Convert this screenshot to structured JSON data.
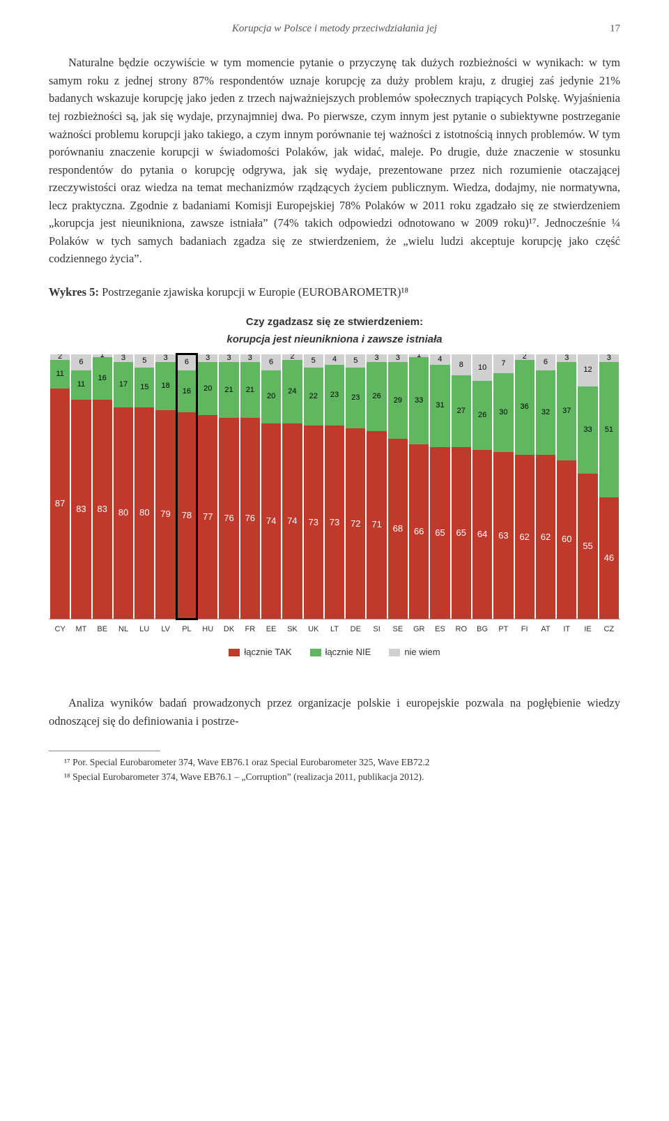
{
  "header": {
    "running_title": "Korupcja w Polsce i metody przeciwdziałania jej",
    "page_number": "17"
  },
  "body_paragraph": "Naturalne będzie oczywiście w tym momencie pytanie o przyczynę tak dużych rozbieżności w wynikach: w tym samym roku z jednej strony 87% respondentów uznaje korupcję za duży problem kraju, z drugiej zaś jedynie 21% badanych wskazuje korupcję jako jeden z trzech najważniejszych problemów społecznych trapiących Polskę. Wyjaśnienia tej rozbieżności są, jak się wydaje, przynajmniej dwa. Po pierwsze, czym innym jest pytanie o subiektywne postrzeganie ważności problemu korupcji jako takiego, a czym innym porównanie tej ważności z istotnością innych problemów. W tym porównaniu znaczenie korupcji w świadomości Polaków, jak widać, maleje. Po drugie, duże znaczenie w stosunku respondentów do pytania o korupcję odgrywa, jak się wydaje, prezentowane przez nich rozumienie otaczającej rzeczywistości oraz wiedza na temat mechanizmów rządzących życiem publicznym. Wiedza, dodajmy, nie normatywna, lecz praktyczna. Zgodnie z badaniami Komisji Europejskiej 78% Polaków w 2011 roku zgadzało się ze stwierdzeniem „korupcja jest nieunikniona, zawsze istniała” (74% takich odpowiedzi odnotowano w 2009 roku)¹⁷. Jednocześnie ¼ Polaków w tych samych badaniach zgadza się ze stwierdzeniem, że „wielu ludzi akceptuje korupcję jako część codziennego życia”.",
  "figure": {
    "label_prefix": "Wykres 5:",
    "label_text": " Postrzeganie zjawiska korupcji w Europie (EUROBAROMETR)¹⁸"
  },
  "chart": {
    "type": "stacked_bar_100pct",
    "title_line1": "Czy zgadzasz się ze stwierdzeniem:",
    "title_line2": "korupcja jest nieunikniona i zawsze istniała",
    "colors": {
      "yes": "#c0392b",
      "no": "#5fb85f",
      "dk": "#d0d0d0",
      "axis": "#888888",
      "highlight_border": "#000000",
      "background": "#ffffff"
    },
    "font": {
      "family": "Arial",
      "title_size": 15,
      "value_size": 12,
      "axis_size": 11
    },
    "highlight_country": "PL",
    "legend": [
      {
        "key": "yes",
        "label": "łącznie TAK"
      },
      {
        "key": "no",
        "label": "łącznie NIE"
      },
      {
        "key": "dk",
        "label": "nie wiem"
      }
    ],
    "countries": [
      {
        "code": "CY",
        "yes": 87,
        "no": 11,
        "dk": 2
      },
      {
        "code": "MT",
        "yes": 83,
        "no": 11,
        "dk": 6
      },
      {
        "code": "BE",
        "yes": 83,
        "no": 16,
        "dk": 1
      },
      {
        "code": "NL",
        "yes": 80,
        "no": 17,
        "dk": 3
      },
      {
        "code": "LU",
        "yes": 80,
        "no": 15,
        "dk": 5
      },
      {
        "code": "LV",
        "yes": 79,
        "no": 18,
        "dk": 3
      },
      {
        "code": "PL",
        "yes": 78,
        "no": 16,
        "dk": 6
      },
      {
        "code": "HU",
        "yes": 77,
        "no": 20,
        "dk": 3
      },
      {
        "code": "DK",
        "yes": 76,
        "no": 21,
        "dk": 3
      },
      {
        "code": "FR",
        "yes": 76,
        "no": 21,
        "dk": 3
      },
      {
        "code": "EE",
        "yes": 74,
        "no": 20,
        "dk": 6
      },
      {
        "code": "SK",
        "yes": 74,
        "no": 24,
        "dk": 2
      },
      {
        "code": "UK",
        "yes": 73,
        "no": 22,
        "dk": 5
      },
      {
        "code": "LT",
        "yes": 73,
        "no": 23,
        "dk": 4
      },
      {
        "code": "DE",
        "yes": 72,
        "no": 23,
        "dk": 5
      },
      {
        "code": "SI",
        "yes": 71,
        "no": 26,
        "dk": 3
      },
      {
        "code": "SE",
        "yes": 68,
        "no": 29,
        "dk": 3
      },
      {
        "code": "GR",
        "yes": 66,
        "no": 33,
        "dk": 1
      },
      {
        "code": "ES",
        "yes": 65,
        "no": 31,
        "dk": 4
      },
      {
        "code": "RO",
        "yes": 65,
        "no": 27,
        "dk": 8
      },
      {
        "code": "BG",
        "yes": 64,
        "no": 26,
        "dk": 10
      },
      {
        "code": "PT",
        "yes": 63,
        "no": 30,
        "dk": 7
      },
      {
        "code": "FI",
        "yes": 62,
        "no": 36,
        "dk": 2
      },
      {
        "code": "AT",
        "yes": 62,
        "no": 32,
        "dk": 6
      },
      {
        "code": "IT",
        "yes": 60,
        "no": 37,
        "dk": 3
      },
      {
        "code": "IE",
        "yes": 55,
        "no": 33,
        "dk": 12
      },
      {
        "code": "CZ",
        "yes": 46,
        "no": 51,
        "dk": 3
      }
    ]
  },
  "analysis_paragraph": "Analiza wyników badań prowadzonych przez organizacje polskie i europejskie pozwala na pogłębienie wiedzy odnoszącej się do definiowania i postrze-",
  "footnotes": {
    "n17": "¹⁷ Por. Special Eurobarometer 374, Wave EB76.1 oraz Special Eurobarometer 325, Wave EB72.2",
    "n18": "¹⁸ Special Eurobarometer 374, Wave EB76.1 – „Corruption” (realizacja 2011, publikacja 2012)."
  }
}
